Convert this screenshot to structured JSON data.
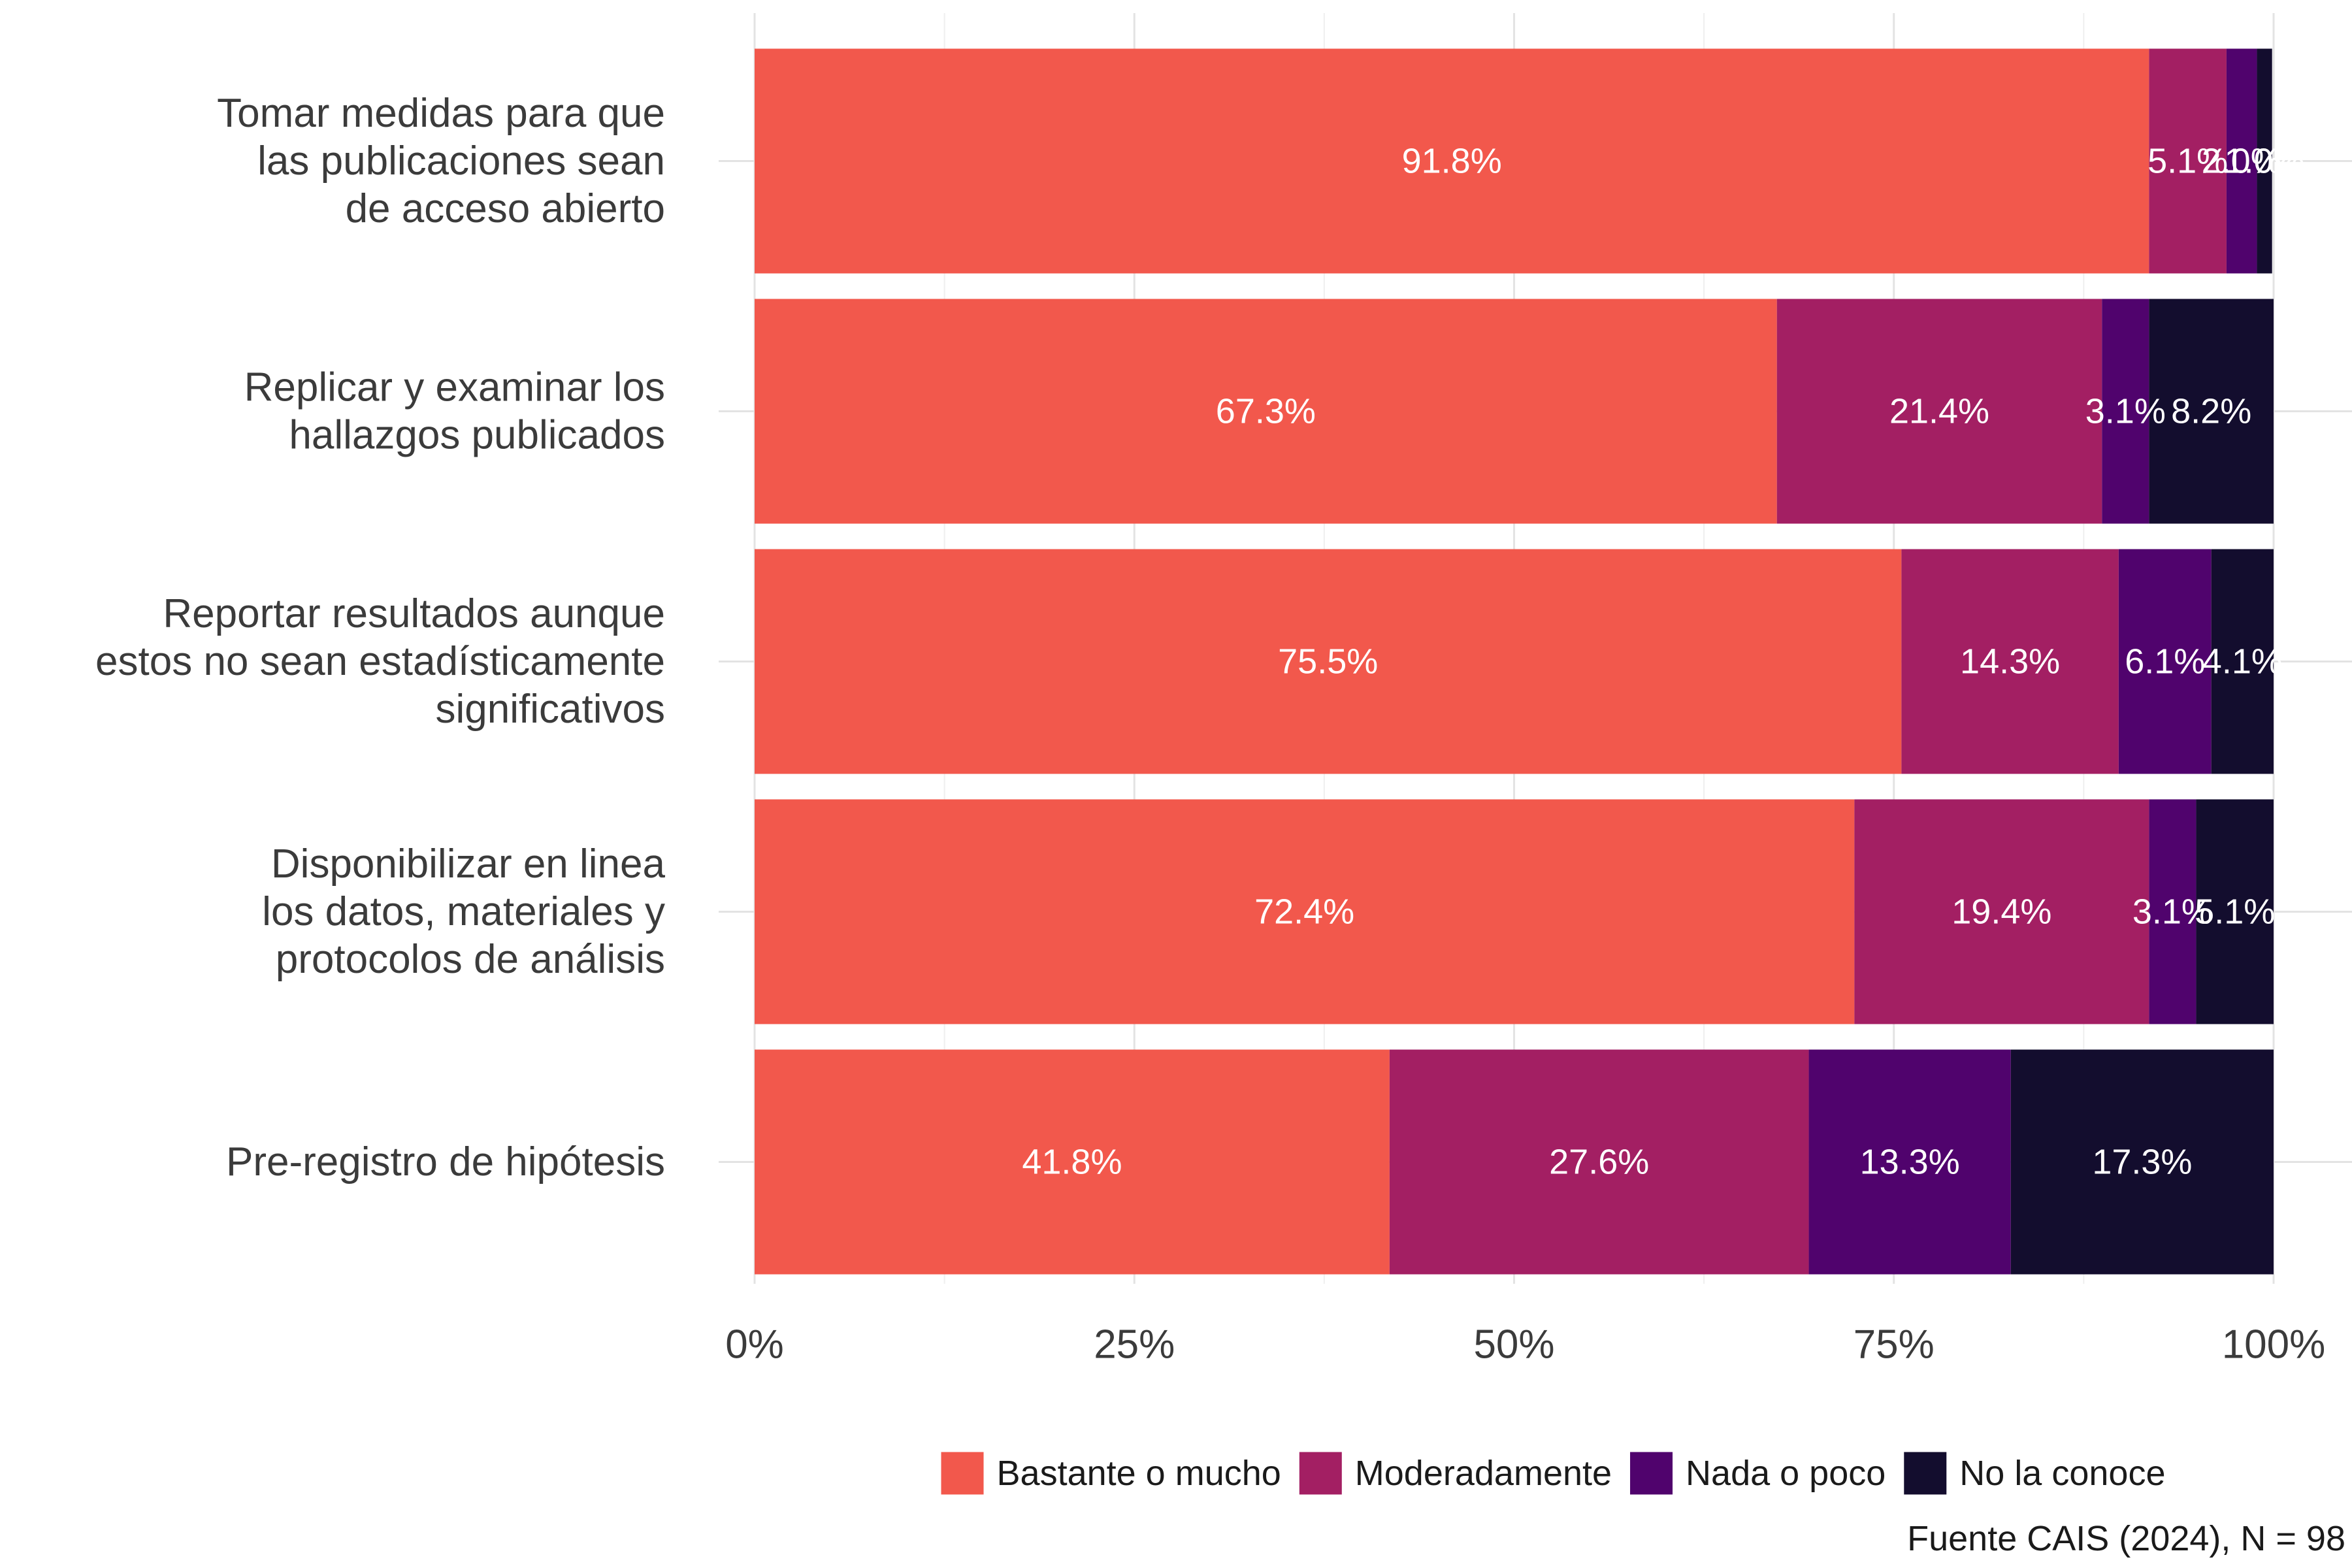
{
  "chart_data": {
    "type": "bar",
    "orientation": "horizontal",
    "stacked": true,
    "percent_stacked": true,
    "categories": [
      "Tomar medidas para que\nlas publicaciones sean\nde acceso abierto",
      "Replicar y examinar los\nhallazgos publicados",
      "Reportar resultados aunque\nestos no sean estadísticamente\nsignificativos",
      "Disponibilizar en linea\nlos datos, materiales y\nprotocolos de análisis",
      "Pre-registro de hipótesis"
    ],
    "series": [
      {
        "name": "Bastante o mucho",
        "color": "#f2584c",
        "values": [
          91.8,
          67.3,
          75.5,
          72.4,
          41.8
        ],
        "labels": [
          "91.8%",
          "67.3%",
          "75.5%",
          "72.4%",
          "41.8%"
        ]
      },
      {
        "name": "Moderadamente",
        "color": "#a31f63",
        "values": [
          5.1,
          21.4,
          14.3,
          19.4,
          27.6
        ],
        "labels": [
          "5.1%",
          "21.4%",
          "14.3%",
          "19.4%",
          "27.6%"
        ]
      },
      {
        "name": "Nada o poco",
        "color": "#50036d",
        "values": [
          2.0,
          3.1,
          6.1,
          3.1,
          13.3
        ],
        "labels": [
          "2.0%",
          "3.1%",
          "6.1%",
          "3.1%",
          "13.3%"
        ]
      },
      {
        "name": "No la conoce",
        "color": "#130d2e",
        "values": [
          1.0,
          8.2,
          4.1,
          5.1,
          17.3
        ],
        "labels": [
          "1.0%",
          "8.2%",
          "4.1%",
          "5.1%",
          "17.3%"
        ]
      }
    ],
    "xlim": [
      0,
      100
    ],
    "xticks": [
      0,
      25,
      50,
      75,
      100
    ],
    "xtick_labels": [
      "0%",
      "25%",
      "50%",
      "75%",
      "100%"
    ],
    "grid": true,
    "legend_position": "bottom",
    "caption": "Fuente CAIS (2024), N = 98"
  }
}
